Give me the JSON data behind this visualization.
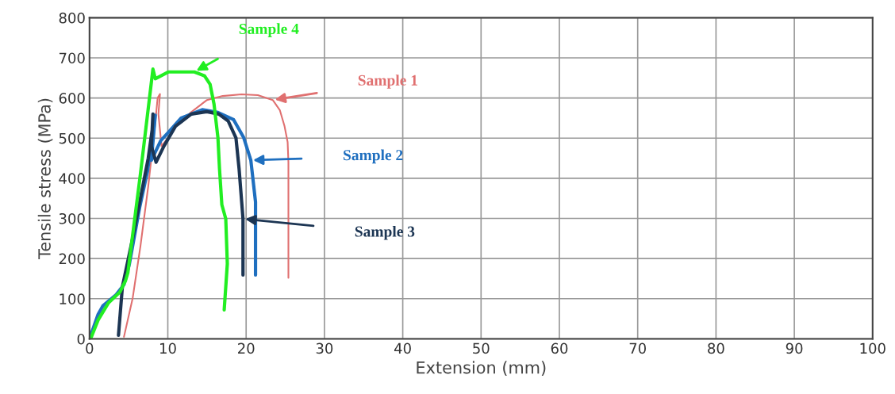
{
  "chart_data": {
    "type": "line",
    "xlabel": "Extension (mm)",
    "ylabel": "Tensile stress (MPa)",
    "xlim": [
      0,
      100
    ],
    "xticks": [
      0,
      10,
      20,
      30,
      40,
      50,
      60,
      70,
      80,
      90,
      100
    ],
    "ylim": [
      0,
      800
    ],
    "yticks": [
      0,
      100,
      200,
      300,
      400,
      500,
      600,
      700,
      800
    ],
    "grid": true,
    "marker": "none",
    "line_style": "solid",
    "series": [
      {
        "name": "Sample 1",
        "color": "#e07070",
        "x": [
          4.4,
          5.5,
          6.5,
          7.5,
          8.3,
          8.7,
          9.0,
          8.8,
          9.2,
          10,
          11,
          13,
          15,
          17,
          19.4,
          21.5,
          23.4,
          24.3,
          24.9,
          25.3,
          25.4,
          25.4,
          25.4
        ],
        "values": [
          5,
          100,
          230,
          380,
          520,
          600,
          610,
          560,
          480,
          500,
          530,
          565,
          595,
          605,
          609,
          607,
          595,
          570,
          530,
          490,
          440,
          300,
          152
        ]
      },
      {
        "name": "Sample 2",
        "color": "#1f6fbf",
        "x": [
          0,
          1.1,
          1.7,
          3.4,
          4.4,
          5.1,
          6.4,
          7.4,
          8.4,
          7.9,
          9.1,
          10.1,
          11.7,
          14.4,
          16.4,
          18.4,
          19.7,
          20.6,
          21.2,
          21.2
        ],
        "values": [
          0,
          61,
          82,
          110,
          135,
          187,
          327,
          417,
          557,
          445,
          494,
          515,
          550,
          571,
          564,
          546,
          501,
          445,
          341,
          159
        ]
      },
      {
        "name": "Sample 3",
        "color": "#1c3553",
        "x": [
          3.7,
          4.2,
          5.5,
          6.7,
          7.5,
          8.0,
          8.1,
          7.9,
          8.5,
          9.5,
          11,
          13,
          15,
          16.5,
          17.7,
          18.7,
          19.1,
          19.6,
          19.6
        ],
        "values": [
          9,
          130,
          250,
          370,
          450,
          520,
          560,
          480,
          440,
          480,
          530,
          560,
          566,
          560,
          543,
          501,
          424,
          299,
          159
        ]
      },
      {
        "name": "Sample 4",
        "color": "#22ee22",
        "x": [
          0.2,
          1.1,
          2.4,
          3.9,
          4.6,
          4.9,
          6.5,
          8.1,
          8.4,
          10.1,
          13.4,
          14.7,
          15.4,
          15.9,
          16.4,
          16.6,
          16.9,
          17.4,
          17.6,
          17.2
        ],
        "values": [
          3,
          47,
          89,
          117,
          145,
          165,
          410,
          672,
          648,
          665,
          665,
          655,
          634,
          585,
          501,
          424,
          334,
          299,
          187,
          72
        ]
      }
    ]
  }
}
